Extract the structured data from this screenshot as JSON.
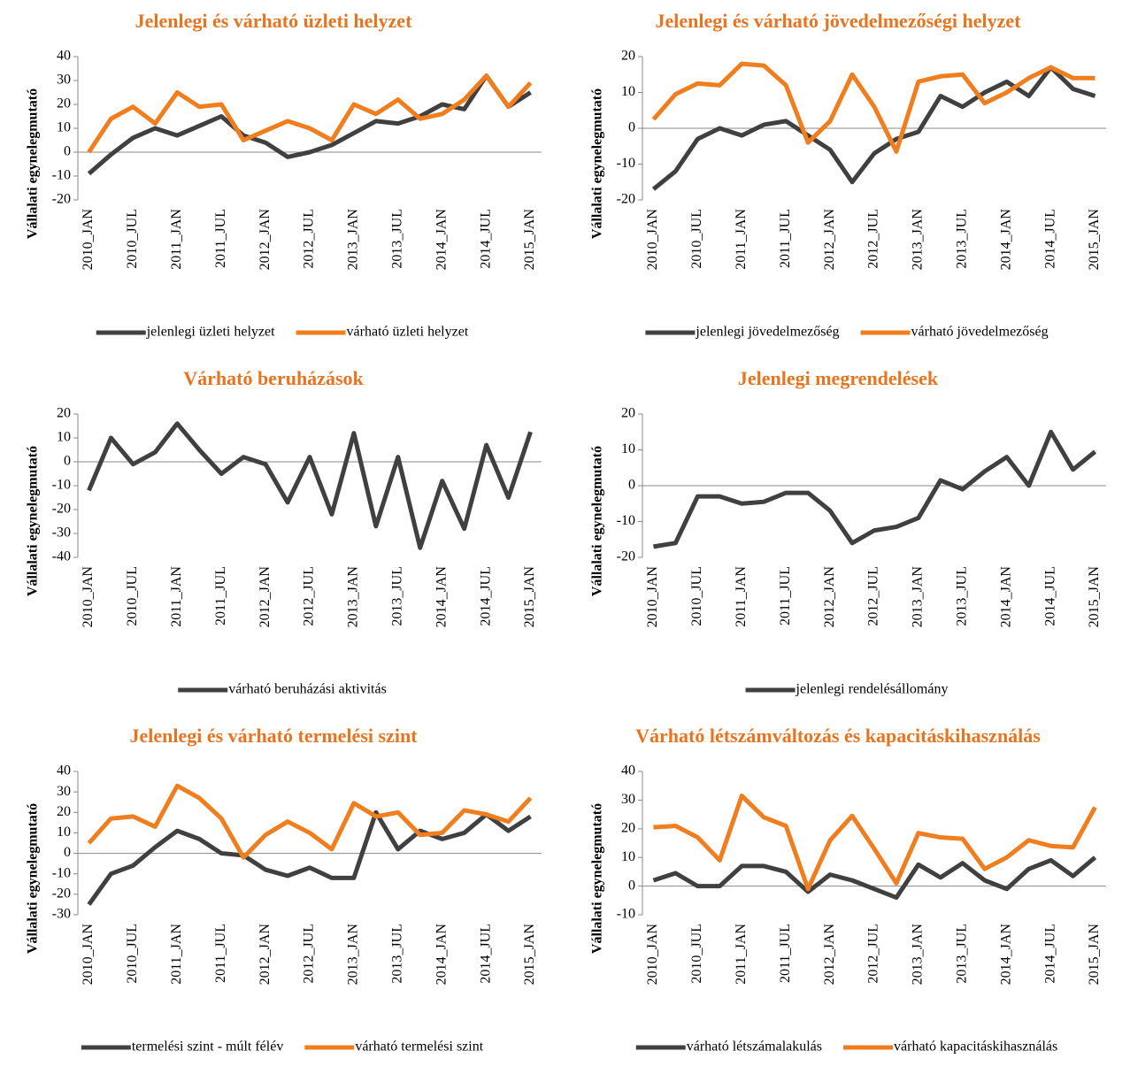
{
  "chart_data": [
    {
      "type": "line",
      "title": "Jelenlegi és várható üzleti helyzet",
      "y_label": "Vállalati egynelegmutató",
      "categories": [
        "2010_JAN",
        null,
        "2010_JUL",
        null,
        "2011_JAN",
        null,
        "2011_JUL",
        null,
        "2012_JAN",
        null,
        "2012_JUL",
        null,
        "2013_JAN",
        null,
        "2013_JUL",
        null,
        "2014_JAN",
        null,
        "2014_JUL",
        null,
        "2015_JAN"
      ],
      "series": [
        {
          "name": "jelenlegi üzleti helyzet",
          "color": "#404040",
          "values": [
            -9,
            -1,
            6,
            10,
            7,
            11,
            15,
            7,
            4,
            -2,
            0,
            3,
            8,
            13,
            12,
            15,
            20,
            18,
            32,
            19,
            25
          ]
        },
        {
          "name": "várható üzleti helyzet",
          "color": "#f07d1e",
          "values": [
            0,
            14,
            19,
            12,
            25,
            19,
            20,
            5,
            9,
            13,
            10,
            5,
            20,
            16,
            22,
            14,
            16,
            22,
            32,
            19,
            29
          ]
        }
      ],
      "ylim": [
        -20,
        40
      ],
      "yticks": [
        -20,
        -10,
        0,
        10,
        20,
        30,
        40
      ]
    },
    {
      "type": "line",
      "title": "Jelenlegi és várható jövedelmezőségi helyzet",
      "y_label": "Vállalati egynelegmutató",
      "categories": [
        "2010_JAN",
        null,
        "2010_JUL",
        null,
        "2011_JAN",
        null,
        "2011_JUL",
        null,
        "2012_JAN",
        null,
        "2012_JUL",
        null,
        "2013_JAN",
        null,
        "2013_JUL",
        null,
        "2014_JAN",
        null,
        "2014_JUL",
        null,
        "2015_JAN"
      ],
      "series": [
        {
          "name": "jelenlegi jövedelmezőség",
          "color": "#404040",
          "values": [
            -17,
            -12,
            -3,
            0,
            -2,
            1,
            2,
            -2,
            -6,
            -15,
            -7,
            -3,
            -1,
            9,
            6,
            10,
            13,
            9,
            17,
            11,
            9
          ]
        },
        {
          "name": "várható jövedelmezőség",
          "color": "#f07d1e",
          "values": [
            2.5,
            9.5,
            12.5,
            12,
            18,
            17.5,
            12,
            -4,
            2,
            15,
            6,
            -6.5,
            13,
            14.5,
            15,
            7,
            10,
            14,
            17,
            14,
            14
          ]
        }
      ],
      "ylim": [
        -20,
        20
      ],
      "yticks": [
        -20,
        -10,
        0,
        10,
        20
      ]
    },
    {
      "type": "line",
      "title": "Várható beruházások",
      "y_label": "Vállalati egynelegmutató",
      "categories": [
        "2010_JAN",
        null,
        "2010_JUL",
        null,
        "2011_JAN",
        null,
        "2011_JUL",
        null,
        "2012_JAN",
        null,
        "2012_JUL",
        null,
        "2013_JAN",
        null,
        "2013_JUL",
        null,
        "2014_JAN",
        null,
        "2014_JUL",
        null,
        "2015_JAN"
      ],
      "series": [
        {
          "name": "várható beruházási aktivitás",
          "color": "#404040",
          "values": [
            -12,
            10,
            -1,
            4,
            16,
            5,
            -5,
            2,
            -1,
            -17,
            2,
            -22,
            12,
            -27,
            2,
            -36,
            -8,
            -28,
            7,
            -15,
            12.5
          ]
        }
      ],
      "ylim": [
        -40,
        20
      ],
      "yticks": [
        -40,
        -30,
        -20,
        -10,
        0,
        10,
        20
      ]
    },
    {
      "type": "line",
      "title": "Jelenlegi megrendelések",
      "y_label": "Vállalati egynelegmutató",
      "categories": [
        "2010_JAN",
        null,
        "2010_JUL",
        null,
        "2011_JAN",
        null,
        "2011_JUL",
        null,
        "2012_JAN",
        null,
        "2012_JUL",
        null,
        "2013_JAN",
        null,
        "2013_JUL",
        null,
        "2014_JAN",
        null,
        "2014_JUL",
        null,
        "2015_JAN"
      ],
      "series": [
        {
          "name": "jelenlegi rendelésállomány",
          "color": "#404040",
          "values": [
            -17,
            -16,
            -3,
            -3,
            -5,
            -4.5,
            -2,
            -2,
            -7,
            -16,
            -12.5,
            -11.5,
            -9,
            1.5,
            -1,
            4,
            8,
            0,
            15,
            4.5,
            9.5
          ]
        }
      ],
      "ylim": [
        -20,
        20
      ],
      "yticks": [
        -20,
        -10,
        0,
        10,
        20
      ]
    },
    {
      "type": "line",
      "title": "Jelenlegi és várható termelési szint",
      "y_label": "Vállalati egynelegmutató",
      "categories": [
        "2010_JAN",
        null,
        "2010_JUL",
        null,
        "2011_JAN",
        null,
        "2011_JUL",
        null,
        "2012_JAN",
        null,
        "2012_JUL",
        null,
        "2013_JAN",
        null,
        "2013_JUL",
        null,
        "2014_JAN",
        null,
        "2014_JUL",
        null,
        "2015_JAN"
      ],
      "series": [
        {
          "name": "termelési szint - múlt félév",
          "color": "#404040",
          "values": [
            -25,
            -10,
            -6,
            3,
            11,
            7,
            0,
            -1,
            -8,
            -11,
            -7,
            -12,
            -12,
            20,
            2,
            11,
            7,
            10,
            19,
            11,
            18
          ]
        },
        {
          "name": "várható termelési szint",
          "color": "#f07d1e",
          "values": [
            5,
            17,
            18,
            13,
            33,
            27,
            17,
            -2,
            9,
            15.5,
            10,
            2,
            24.5,
            18,
            20,
            9,
            10,
            21,
            19,
            15.5,
            27
          ]
        }
      ],
      "ylim": [
        -30,
        40
      ],
      "yticks": [
        -30,
        -20,
        -10,
        0,
        10,
        20,
        30,
        40
      ]
    },
    {
      "type": "line",
      "title": "Várható létszámváltozás és kapacitáskihasználás",
      "y_label": "Vállalati egynelegmutató",
      "categories": [
        "2010_JAN",
        null,
        "2010_JUL",
        null,
        "2011_JAN",
        null,
        "2011_JUL",
        null,
        "2012_JAN",
        null,
        "2012_JUL",
        null,
        "2013_JAN",
        null,
        "2013_JUL",
        null,
        "2014_JAN",
        null,
        "2014_JUL",
        null,
        "2015_JAN"
      ],
      "series": [
        {
          "name": "várható létszámalakulás",
          "color": "#404040",
          "values": [
            2,
            4.5,
            0,
            0,
            7,
            7,
            5,
            -2,
            4,
            2,
            -1,
            -4,
            7.5,
            3,
            8,
            2,
            -1,
            6,
            9,
            3.5,
            10
          ]
        },
        {
          "name": "várható kapacitáskihasználás",
          "color": "#f07d1e",
          "values": [
            20.5,
            21,
            17,
            9,
            31.5,
            24,
            21,
            -1,
            16,
            24.5,
            13,
            1,
            18.5,
            17,
            16.5,
            6,
            10,
            16,
            14,
            13.5,
            27.5
          ]
        }
      ],
      "ylim": [
        -10,
        40
      ],
      "yticks": [
        -10,
        0,
        10,
        20,
        30,
        40
      ]
    }
  ]
}
